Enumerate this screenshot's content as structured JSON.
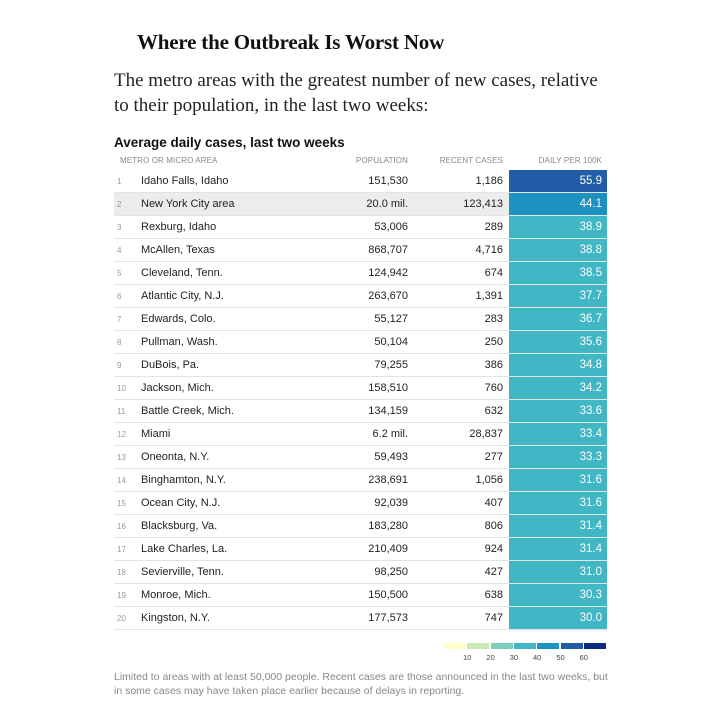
{
  "title": "Where the Outbreak Is Worst Now",
  "subtitle": "The metro areas with the greatest number of new cases, relative to their population, in the last two weeks:",
  "note": "Limited to areas with at least 50,000 people. Recent cases are those announced in the last two weeks, but in some cases may have taken place earlier because of delays in reporting.",
  "chart_data": {
    "type": "table",
    "title": "Average daily cases, last two weeks",
    "columns": [
      "METRO OR MICRO AREA",
      "POPULATION",
      "RECENT CASES",
      "DAILY PER 100K"
    ],
    "highlighted_row": 2,
    "rows": [
      {
        "rank": "1",
        "name": "Idaho Falls, Idaho",
        "population": "151,530",
        "cases": "1,186",
        "per100k": 55.9
      },
      {
        "rank": "2",
        "name": "New York City area",
        "population": "20.0 mil.",
        "cases": "123,413",
        "per100k": 44.1
      },
      {
        "rank": "3",
        "name": "Rexburg, Idaho",
        "population": "53,006",
        "cases": "289",
        "per100k": 38.9
      },
      {
        "rank": "4",
        "name": "McAllen, Texas",
        "population": "868,707",
        "cases": "4,716",
        "per100k": 38.8
      },
      {
        "rank": "5",
        "name": "Cleveland, Tenn.",
        "population": "124,942",
        "cases": "674",
        "per100k": 38.5
      },
      {
        "rank": "6",
        "name": "Atlantic City, N.J.",
        "population": "263,670",
        "cases": "1,391",
        "per100k": 37.7
      },
      {
        "rank": "7",
        "name": "Edwards, Colo.",
        "population": "55,127",
        "cases": "283",
        "per100k": 36.7
      },
      {
        "rank": "8",
        "name": "Pullman, Wash.",
        "population": "50,104",
        "cases": "250",
        "per100k": 35.6
      },
      {
        "rank": "9",
        "name": "DuBois, Pa.",
        "population": "79,255",
        "cases": "386",
        "per100k": 34.8
      },
      {
        "rank": "10",
        "name": "Jackson, Mich.",
        "population": "158,510",
        "cases": "760",
        "per100k": 34.2
      },
      {
        "rank": "11",
        "name": "Battle Creek, Mich.",
        "population": "134,159",
        "cases": "632",
        "per100k": 33.6
      },
      {
        "rank": "12",
        "name": "Miami",
        "population": "6.2 mil.",
        "cases": "28,837",
        "per100k": 33.4
      },
      {
        "rank": "13",
        "name": "Oneonta, N.Y.",
        "population": "59,493",
        "cases": "277",
        "per100k": 33.3
      },
      {
        "rank": "14",
        "name": "Binghamton, N.Y.",
        "population": "238,691",
        "cases": "1,056",
        "per100k": 31.6
      },
      {
        "rank": "15",
        "name": "Ocean City, N.J.",
        "population": "92,039",
        "cases": "407",
        "per100k": 31.6
      },
      {
        "rank": "16",
        "name": "Blacksburg, Va.",
        "population": "183,280",
        "cases": "806",
        "per100k": 31.4
      },
      {
        "rank": "17",
        "name": "Lake Charles, La.",
        "population": "210,409",
        "cases": "924",
        "per100k": 31.4
      },
      {
        "rank": "18",
        "name": "Sevierville, Tenn.",
        "population": "98,250",
        "cases": "427",
        "per100k": 31.0
      },
      {
        "rank": "19",
        "name": "Monroe, Mich.",
        "population": "150,500",
        "cases": "638",
        "per100k": 30.3
      },
      {
        "rank": "20",
        "name": "Kingston, N.Y.",
        "population": "177,573",
        "cases": "747",
        "per100k": 30.0
      }
    ],
    "legend": {
      "colors": [
        "#ffffcc",
        "#c7e9b4",
        "#7fcdbb",
        "#41b6c4",
        "#1d91c0",
        "#225ea8",
        "#0c2c84"
      ],
      "ticks": [
        "10",
        "20",
        "30",
        "40",
        "50",
        "60"
      ]
    }
  }
}
